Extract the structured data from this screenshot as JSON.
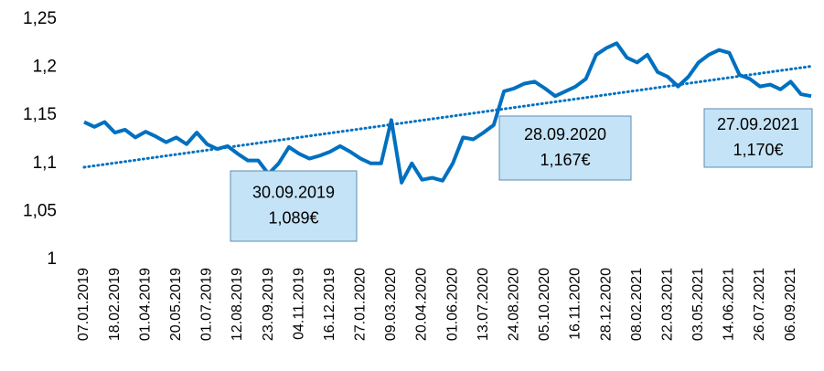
{
  "chart_data": {
    "type": "line",
    "categories": [
      "07.01.2019",
      null,
      null,
      "18.02.2019",
      null,
      null,
      "01.04.2019",
      null,
      null,
      "20.05.2019",
      null,
      null,
      "01.07.2019",
      null,
      null,
      "12.08.2019",
      null,
      null,
      "23.09.2019",
      null,
      null,
      "04.11.2019",
      null,
      null,
      "16.12.2019",
      null,
      null,
      "27.01.2020",
      null,
      null,
      "09.03.2020",
      null,
      null,
      "20.04.2020",
      null,
      null,
      "01.06.2020",
      null,
      null,
      "13.07.2020",
      null,
      null,
      "24.08.2020",
      null,
      null,
      "05.10.2020",
      null,
      null,
      "16.11.2020",
      null,
      null,
      "28.12.2020",
      null,
      null,
      "08.02.2021",
      null,
      null,
      "22.03.2021",
      null,
      null,
      "03.05.2021",
      null,
      null,
      "14.06.2021",
      null,
      null,
      "26.07.2021",
      null,
      null,
      "06.09.2021",
      null,
      null
    ],
    "series": [
      {
        "color": "#0070c0",
        "values": [
          1.143,
          1.138,
          1.143,
          1.132,
          1.135,
          1.127,
          1.133,
          1.128,
          1.122,
          1.127,
          1.12,
          1.132,
          1.12,
          1.115,
          1.118,
          1.11,
          1.103,
          1.103,
          1.089,
          1.1,
          1.117,
          1.11,
          1.105,
          1.108,
          1.112,
          1.118,
          1.112,
          1.105,
          1.1,
          1.1,
          1.145,
          1.08,
          1.1,
          1.083,
          1.085,
          1.082,
          1.1,
          1.127,
          1.125,
          1.132,
          1.14,
          1.175,
          1.178,
          1.183,
          1.185,
          1.178,
          1.17,
          1.175,
          1.18,
          1.188,
          1.213,
          1.22,
          1.225,
          1.21,
          1.205,
          1.213,
          1.195,
          1.19,
          1.18,
          1.19,
          1.205,
          1.213,
          1.218,
          1.215,
          1.192,
          1.188,
          1.18,
          1.182,
          1.177,
          1.185,
          1.172,
          1.17
        ]
      }
    ],
    "trend": {
      "color": "#0070c0",
      "values": [
        1.096,
        1.201
      ]
    },
    "annotations": [
      [
        "30.09.2019",
        "1,089€"
      ],
      [
        "28.09.2020",
        "1,167€"
      ],
      [
        "27.09.2021",
        "1,170€"
      ]
    ],
    "ylim": [
      1,
      1.25
    ],
    "yticks": [
      1,
      {
        "value": 1.05,
        "label": "1,05"
      },
      {
        "value": 1.1,
        "label": "1,1"
      },
      {
        "value": 1.15,
        "label": "1,15"
      },
      {
        "value": 1.2,
        "label": "1,2"
      },
      {
        "value": 1.25,
        "label": "1,25"
      }
    ],
    "grid": false
  }
}
